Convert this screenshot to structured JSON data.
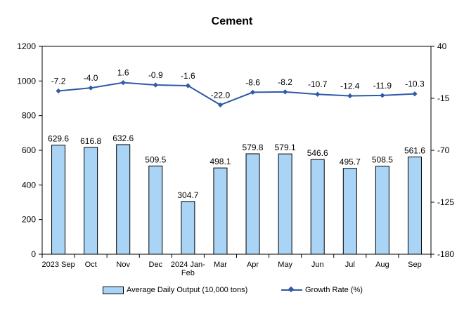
{
  "chart_data": {
    "type": "bar",
    "title": "Cement",
    "categories": [
      "2023 Sep",
      "Oct",
      "Nov",
      "Dec",
      "2024 Jan-Feb",
      "Mar",
      "Apr",
      "May",
      "Jun",
      "Jul",
      "Aug",
      "Sep"
    ],
    "category_lines": [
      [
        "2023 Sep"
      ],
      [
        "Oct"
      ],
      [
        "Nov"
      ],
      [
        "Dec"
      ],
      [
        "2024 Jan-",
        "Feb"
      ],
      [
        "Mar"
      ],
      [
        "Apr"
      ],
      [
        "May"
      ],
      [
        "Jun"
      ],
      [
        "Jul"
      ],
      [
        "Aug"
      ],
      [
        "Sep"
      ]
    ],
    "series": [
      {
        "name": "Average Daily Output (10,000 tons)",
        "type": "bar",
        "axis": "left",
        "color": "#a9d4f5",
        "values": [
          629.6,
          616.8,
          632.6,
          509.5,
          304.7,
          498.1,
          579.8,
          579.1,
          546.6,
          495.7,
          508.5,
          561.6
        ],
        "labels": [
          "629.6",
          "616.8",
          "632.6",
          "509.5",
          "304.7",
          "498.1",
          "579.8",
          "579.1",
          "546.6",
          "495.7",
          "508.5",
          "561.6"
        ]
      },
      {
        "name": "Growth Rate (%)",
        "type": "line",
        "axis": "right",
        "color": "#2e5aa8",
        "values": [
          -7.2,
          -4.0,
          1.6,
          -0.9,
          -1.6,
          -22.0,
          -8.6,
          -8.2,
          -10.7,
          -12.4,
          -11.9,
          -10.3
        ],
        "labels": [
          "-7.2",
          "-4.0",
          "1.6",
          "-0.9",
          "-1.6",
          "-22.0",
          "-8.6",
          "-8.2",
          "-10.7",
          "-12.4",
          "-11.9",
          "-10.3"
        ]
      }
    ],
    "y_left": {
      "min": 0,
      "max": 1200,
      "ticks": [
        0,
        200,
        400,
        600,
        800,
        1000,
        1200
      ]
    },
    "y_right": {
      "min": -180,
      "max": 40,
      "ticks": [
        -180,
        -125,
        -70,
        -15,
        40
      ]
    },
    "grid": false,
    "legend": "bottom"
  }
}
